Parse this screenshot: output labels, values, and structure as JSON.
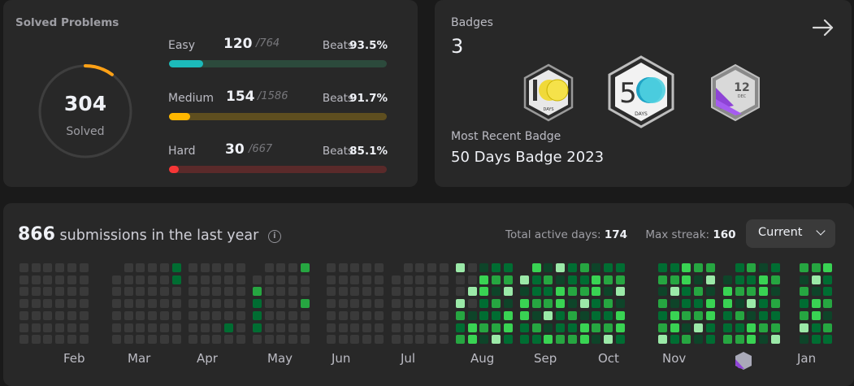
{
  "solved": {
    "title": "Solved Problems",
    "count": "304",
    "label": "Solved",
    "ring_progress": 0.1,
    "ring_color": "#ffa116",
    "rows": [
      {
        "name": "Easy",
        "count": "120",
        "total": "/764",
        "beats_label": "Beats",
        "beats": "93.5%",
        "progress": 0.157,
        "fill": "#1cbaba",
        "track": "#2c4a3c"
      },
      {
        "name": "Medium",
        "count": "154",
        "total": "/1586",
        "beats_label": "Beats",
        "beats": "91.7%",
        "progress": 0.097,
        "fill": "#ffb700",
        "track": "#5e4e1f"
      },
      {
        "name": "Hard",
        "count": "30",
        "total": "/667",
        "beats_label": "Beats",
        "beats": "85.1%",
        "progress": 0.045,
        "fill": "#f63636",
        "track": "#5a2a2a"
      }
    ]
  },
  "badges": {
    "label": "Badges",
    "count": "3",
    "recent_label": "Most Recent Badge",
    "recent_name": "50 Days Badge 2023",
    "items": [
      {
        "icon": "100-days-badge",
        "text": "DAYS"
      },
      {
        "icon": "50-days-badge",
        "text": "DAYS"
      },
      {
        "icon": "december-badge",
        "num": "12",
        "text": "DEC"
      }
    ]
  },
  "heatmap": {
    "count": "866",
    "suffix": "submissions in the last year",
    "active_label": "Total active days:",
    "active": "174",
    "streak_label": "Max streak:",
    "streak": "160",
    "dropdown": "Current",
    "months": [
      "Feb",
      "Mar",
      "Apr",
      "May",
      "Jun",
      "Jul",
      "Aug",
      "Sep",
      "Oct",
      "Nov",
      "Jan"
    ],
    "colors": {
      "empty": "#3a3a3a",
      "l1": "#0e4429",
      "l2": "#006d32",
      "l3": "#26a641",
      "l4": "#39d353",
      "l5": "#9be9a8"
    }
  }
}
